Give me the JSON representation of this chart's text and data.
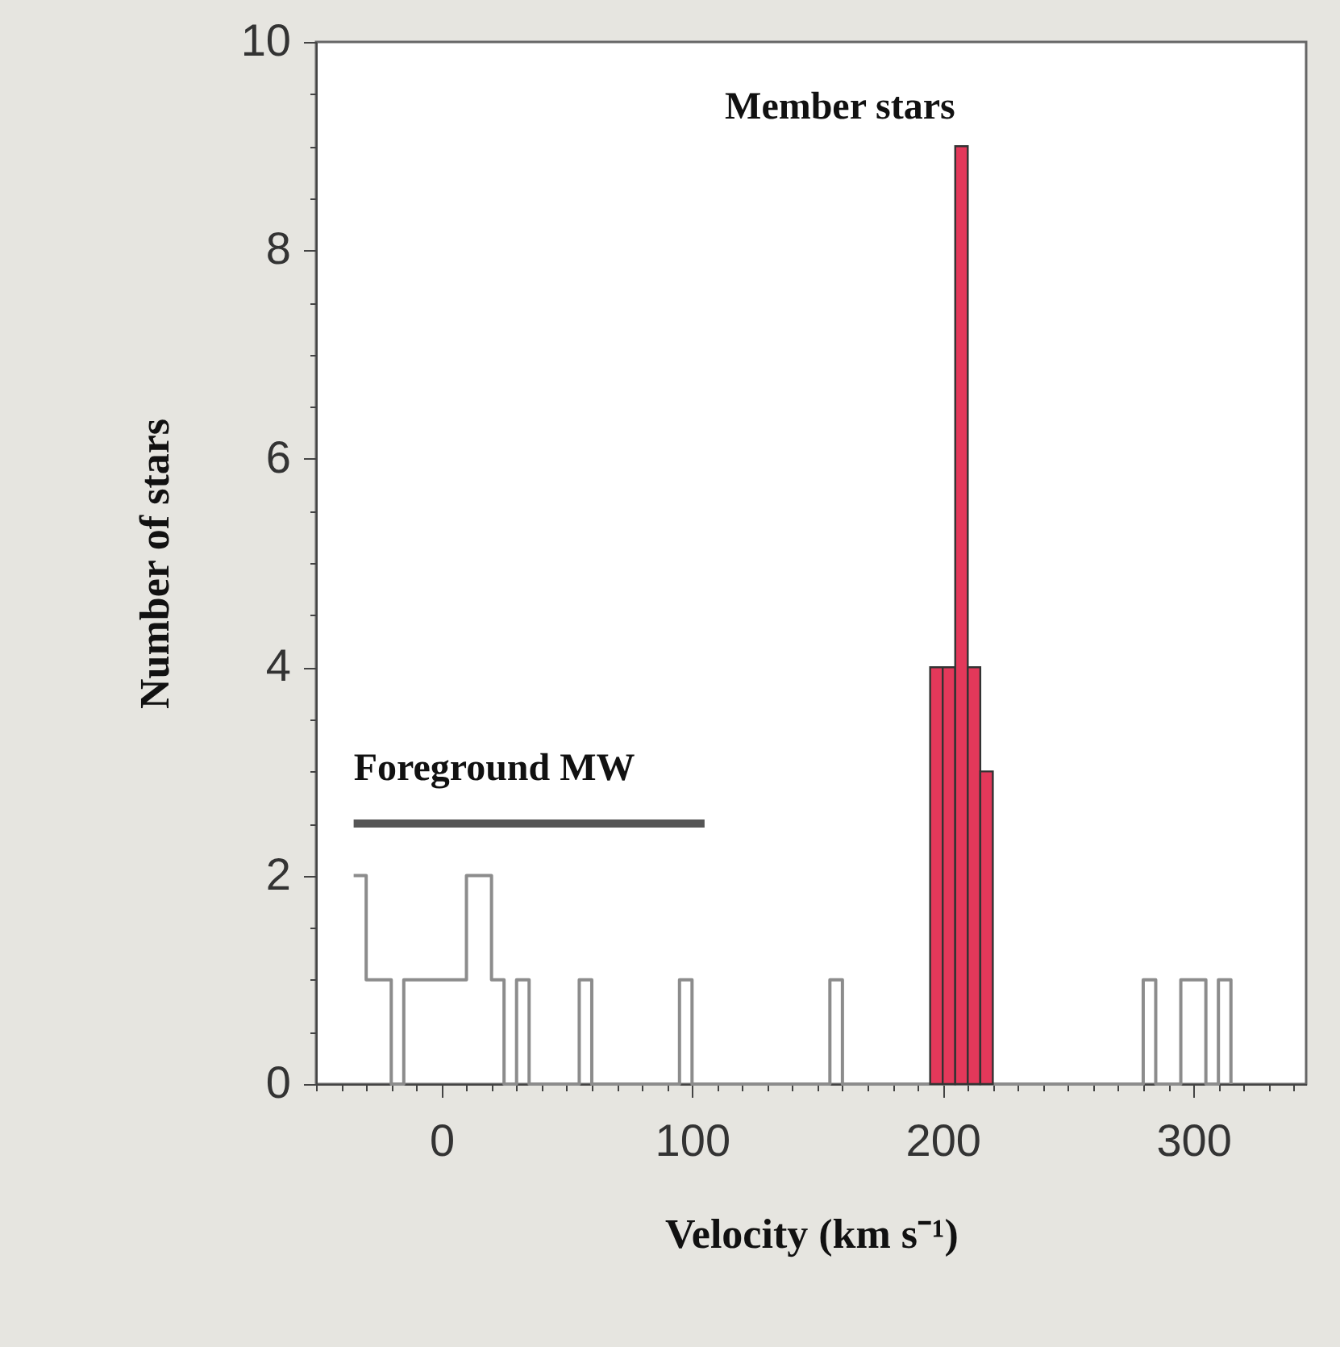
{
  "chart_data": {
    "type": "histogram",
    "xlabel": "Velocity (km s⁻¹)",
    "ylabel": "Number of stars",
    "xlim": [
      -50,
      345
    ],
    "ylim": [
      0,
      10
    ],
    "xticks": [
      {
        "value": -50,
        "label": null
      },
      {
        "value": -40,
        "label": null
      },
      {
        "value": -30,
        "label": null
      },
      {
        "value": -20,
        "label": null
      },
      {
        "value": -10,
        "label": null
      },
      0,
      {
        "value": 10,
        "label": null
      },
      {
        "value": 20,
        "label": null
      },
      {
        "value": 30,
        "label": null
      },
      {
        "value": 40,
        "label": null
      },
      {
        "value": 50,
        "label": null
      },
      {
        "value": 60,
        "label": null
      },
      {
        "value": 70,
        "label": null
      },
      {
        "value": 80,
        "label": null
      },
      {
        "value": 90,
        "label": null
      },
      100,
      {
        "value": 110,
        "label": null
      },
      {
        "value": 120,
        "label": null
      },
      {
        "value": 130,
        "label": null
      },
      {
        "value": 140,
        "label": null
      },
      {
        "value": 150,
        "label": null
      },
      {
        "value": 160,
        "label": null
      },
      {
        "value": 170,
        "label": null
      },
      {
        "value": 180,
        "label": null
      },
      {
        "value": 190,
        "label": null
      },
      200,
      {
        "value": 210,
        "label": null
      },
      {
        "value": 220,
        "label": null
      },
      {
        "value": 230,
        "label": null
      },
      {
        "value": 240,
        "label": null
      },
      {
        "value": 250,
        "label": null
      },
      {
        "value": 260,
        "label": null
      },
      {
        "value": 270,
        "label": null
      },
      {
        "value": 280,
        "label": null
      },
      {
        "value": 290,
        "label": null
      },
      300,
      {
        "value": 310,
        "label": null
      },
      {
        "value": 320,
        "label": null
      },
      {
        "value": 330,
        "label": null
      },
      {
        "value": 340,
        "label": null
      }
    ],
    "yticks": [
      0,
      {
        "value": 0.5,
        "label": null
      },
      {
        "value": 1,
        "label": null
      },
      {
        "value": 1.5,
        "label": null
      },
      2,
      {
        "value": 2.5,
        "label": null
      },
      {
        "value": 3,
        "label": null
      },
      {
        "value": 3.5,
        "label": null
      },
      4,
      {
        "value": 4.5,
        "label": null
      },
      {
        "value": 5,
        "label": null
      },
      {
        "value": 5.5,
        "label": null
      },
      6,
      {
        "value": 6.5,
        "label": null
      },
      {
        "value": 7,
        "label": null
      },
      {
        "value": 7.5,
        "label": null
      },
      8,
      {
        "value": 8.5,
        "label": null
      },
      {
        "value": 9,
        "label": null
      },
      {
        "value": 9.5,
        "label": null
      },
      10
    ],
    "grid": false,
    "series": [
      {
        "type": "step",
        "color": "#8c8c8c",
        "x": [
          -35,
          -30,
          -20,
          -15,
          10,
          20,
          25,
          30,
          35,
          55,
          60,
          95,
          100,
          155,
          160,
          280,
          285,
          295,
          305,
          310,
          315
        ],
        "values": [
          2,
          1,
          0,
          1,
          2,
          1,
          0,
          1,
          0,
          1,
          0,
          1,
          0,
          1,
          0,
          1,
          0,
          1,
          0,
          1,
          0
        ]
      },
      {
        "color": "#e3385a",
        "bins": [
          195,
          200,
          205,
          210,
          215,
          220
        ],
        "values": [
          4,
          4,
          9,
          4,
          3
        ]
      },
      {
        "type": "line",
        "color": "#555555",
        "x": [
          -35,
          105
        ],
        "values": [
          2.5,
          2.5
        ]
      }
    ],
    "annotations": [
      {
        "text": "Member stars",
        "x": 205,
        "y": 9
      },
      {
        "text": "Foreground MW",
        "x": -35,
        "y": 2.5
      }
    ]
  }
}
